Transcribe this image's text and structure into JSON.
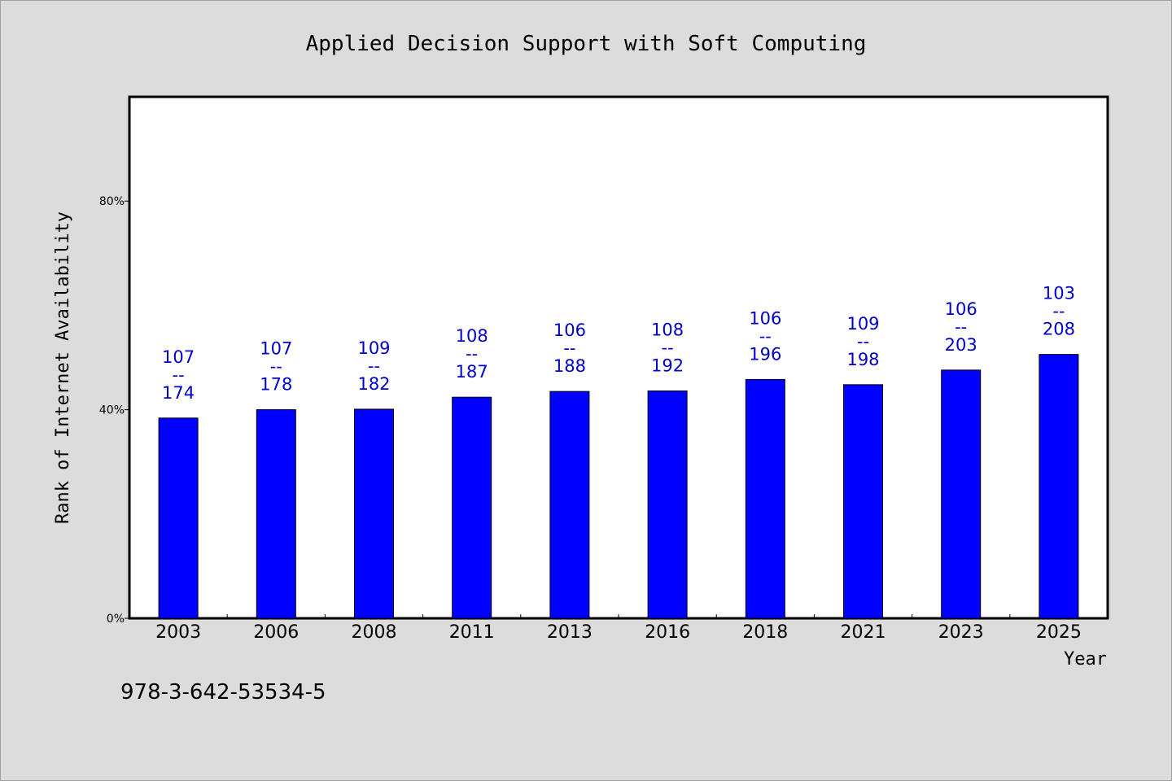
{
  "chart_data": {
    "type": "bar",
    "title": "Applied Decision Support with Soft Computing",
    "xlabel": "Year",
    "ylabel": "Rank of Internet Availability",
    "ylim": [
      0,
      100
    ],
    "yticks": [
      {
        "value": 0,
        "label": "0%"
      },
      {
        "value": 40,
        "label": "40%"
      },
      {
        "value": 80,
        "label": "80%"
      }
    ],
    "categories": [
      "2003",
      "2006",
      "2008",
      "2011",
      "2013",
      "2016",
      "2018",
      "2021",
      "2023",
      "2025"
    ],
    "values": [
      38.4,
      40.0,
      40.1,
      42.4,
      43.5,
      43.6,
      45.8,
      44.8,
      47.6,
      50.6
    ],
    "bar_labels": [
      {
        "top": "107",
        "sep": "--",
        "bottom": "174"
      },
      {
        "top": "107",
        "sep": "--",
        "bottom": "178"
      },
      {
        "top": "109",
        "sep": "--",
        "bottom": "182"
      },
      {
        "top": "108",
        "sep": "--",
        "bottom": "187"
      },
      {
        "top": "106",
        "sep": "--",
        "bottom": "188"
      },
      {
        "top": "108",
        "sep": "--",
        "bottom": "192"
      },
      {
        "top": "106",
        "sep": "--",
        "bottom": "196"
      },
      {
        "top": "109",
        "sep": "--",
        "bottom": "198"
      },
      {
        "top": "106",
        "sep": "--",
        "bottom": "203"
      },
      {
        "top": "103",
        "sep": "--",
        "bottom": "208"
      }
    ],
    "grid": false,
    "bar_color": "#0000ff",
    "label_color": "#0000cc",
    "background_color": "#dcdcdc",
    "plot_background": "#ffffff"
  },
  "footer": {
    "isbn": "978-3-642-53534-5"
  }
}
